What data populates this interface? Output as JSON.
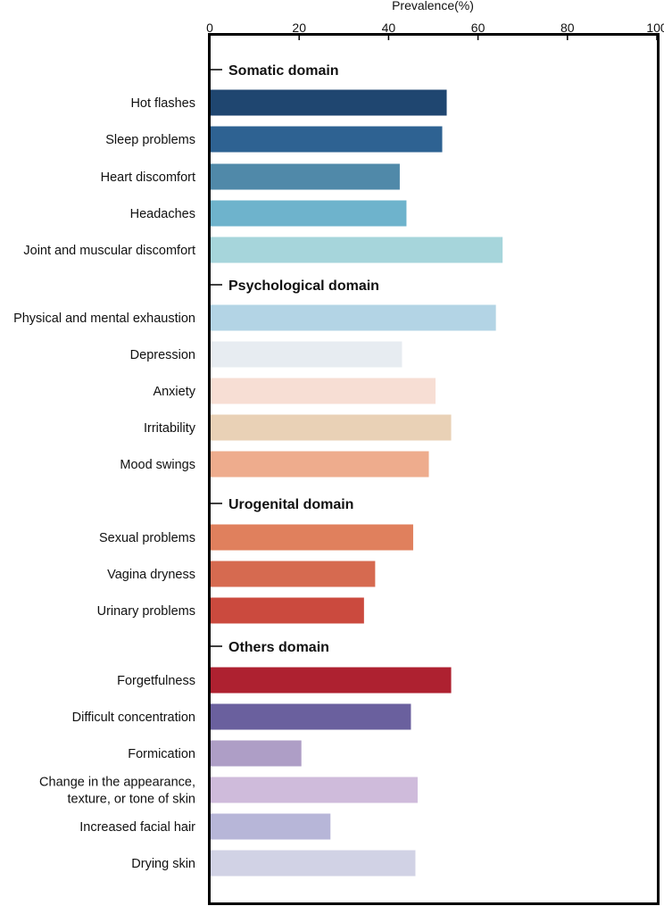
{
  "chart_data": {
    "type": "bar",
    "orientation": "horizontal",
    "xlabel": "Prevalence(%)",
    "xlim": [
      0,
      100
    ],
    "xticks": [
      0,
      20,
      40,
      60,
      80,
      100
    ],
    "axis_position": "top",
    "grid": false,
    "legend": "none",
    "groups": [
      {
        "name": "Somatic domain",
        "items": [
          {
            "label": "Hot flashes",
            "value": 53,
            "color": "#1f4670"
          },
          {
            "label": "Sleep problems",
            "value": 52,
            "color": "#2e6292"
          },
          {
            "label": "Heart discomfort",
            "value": 42.5,
            "color": "#5089a9"
          },
          {
            "label": "Headaches",
            "value": 44,
            "color": "#6eb3cc"
          },
          {
            "label": "Joint and muscular discomfort",
            "value": 65.5,
            "color": "#a6d5db"
          }
        ]
      },
      {
        "name": "Psychological domain",
        "items": [
          {
            "label": "Physical and mental exhaustion",
            "value": 64,
            "color": "#b3d4e5"
          },
          {
            "label": "Depression",
            "value": 43,
            "color": "#e7ecf1"
          },
          {
            "label": "Anxiety",
            "value": 50.5,
            "color": "#f7ded4"
          },
          {
            "label": "Irritability",
            "value": 54,
            "color": "#e9d1b6"
          },
          {
            "label": "Mood swings",
            "value": 49,
            "color": "#eeac8d"
          }
        ]
      },
      {
        "name": "Urogenital  domain",
        "items": [
          {
            "label": "Sexual problems",
            "value": 45.5,
            "color": "#e0805d"
          },
          {
            "label": "Vagina dryness",
            "value": 37,
            "color": "#d66a50"
          },
          {
            "label": "Urinary problems",
            "value": 34.5,
            "color": "#cb4a3e"
          }
        ]
      },
      {
        "name": "Others domain",
        "items": [
          {
            "label": "Forgetfulness",
            "value": 54,
            "color": "#ae2130"
          },
          {
            "label": "Difficult concentration",
            "value": 45,
            "color": "#6a609e"
          },
          {
            "label": "Formication",
            "value": 20.5,
            "color": "#ae9ec6"
          },
          {
            "label": "Change in the appearance,\ntexture, or tone of skin",
            "value": 46.5,
            "color": "#cfbbdb"
          },
          {
            "label": "Increased facial hair",
            "value": 27,
            "color": "#b7b6d8"
          },
          {
            "label": "Drying skin",
            "value": 46,
            "color": "#d1d2e5"
          }
        ]
      }
    ]
  }
}
